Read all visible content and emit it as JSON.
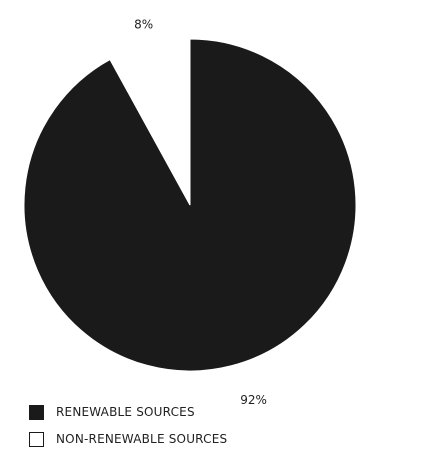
{
  "chart_data": {
    "type": "pie",
    "categories": [
      "RENEWABLE SOURCES",
      "NON-RENEWABLE SOURCES"
    ],
    "values": [
      92,
      8
    ],
    "data_labels": [
      "92%",
      "8%"
    ],
    "colors": [
      "#1a1a1a",
      "#ffffff"
    ],
    "start_angle": "12 o'clock",
    "direction": "clockwise",
    "legend_position": "bottom-left"
  }
}
